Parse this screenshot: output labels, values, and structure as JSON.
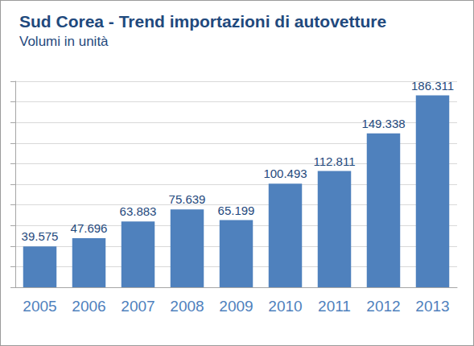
{
  "chart_data": {
    "type": "bar",
    "title": "Sud Corea - Trend importazioni di autovetture",
    "subtitle": "Volumi in unità",
    "categories": [
      "2005",
      "2006",
      "2007",
      "2008",
      "2009",
      "2010",
      "2011",
      "2012",
      "2013"
    ],
    "values": [
      39575,
      47696,
      63883,
      75639,
      65199,
      100493,
      112811,
      149338,
      186311
    ],
    "value_labels": [
      "39.575",
      "47.696",
      "63.883",
      "75.639",
      "65.199",
      "100.493",
      "112.811",
      "149.338",
      "186.311"
    ],
    "color": "#4f81bd",
    "ylim": [
      0,
      200000
    ],
    "yticks": [
      0,
      20000,
      40000,
      60000,
      80000,
      100000,
      120000,
      140000,
      160000,
      180000,
      200000
    ],
    "grid": true,
    "data_labels": true,
    "tick_labels": "x"
  }
}
